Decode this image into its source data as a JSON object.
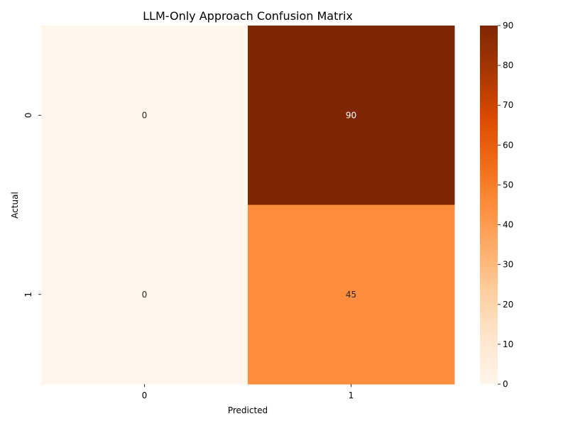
{
  "chart_data": {
    "type": "heatmap",
    "title": "LLM-Only Approach Confusion Matrix",
    "xlabel": "Predicted",
    "ylabel": "Actual",
    "x_categories": [
      "0",
      "1"
    ],
    "y_categories": [
      "0",
      "1"
    ],
    "values": [
      [
        0,
        90
      ],
      [
        0,
        45
      ]
    ],
    "annotations": [
      [
        "0",
        "90"
      ],
      [
        "0",
        "45"
      ]
    ],
    "colormap": "Oranges",
    "vmin": 0,
    "vmax": 90,
    "colorbar_ticks": [
      "0",
      "10",
      "20",
      "30",
      "40",
      "50",
      "60",
      "70",
      "80",
      "90"
    ],
    "colors": {
      "low": "#fff5eb",
      "high": "#7f2704"
    }
  }
}
